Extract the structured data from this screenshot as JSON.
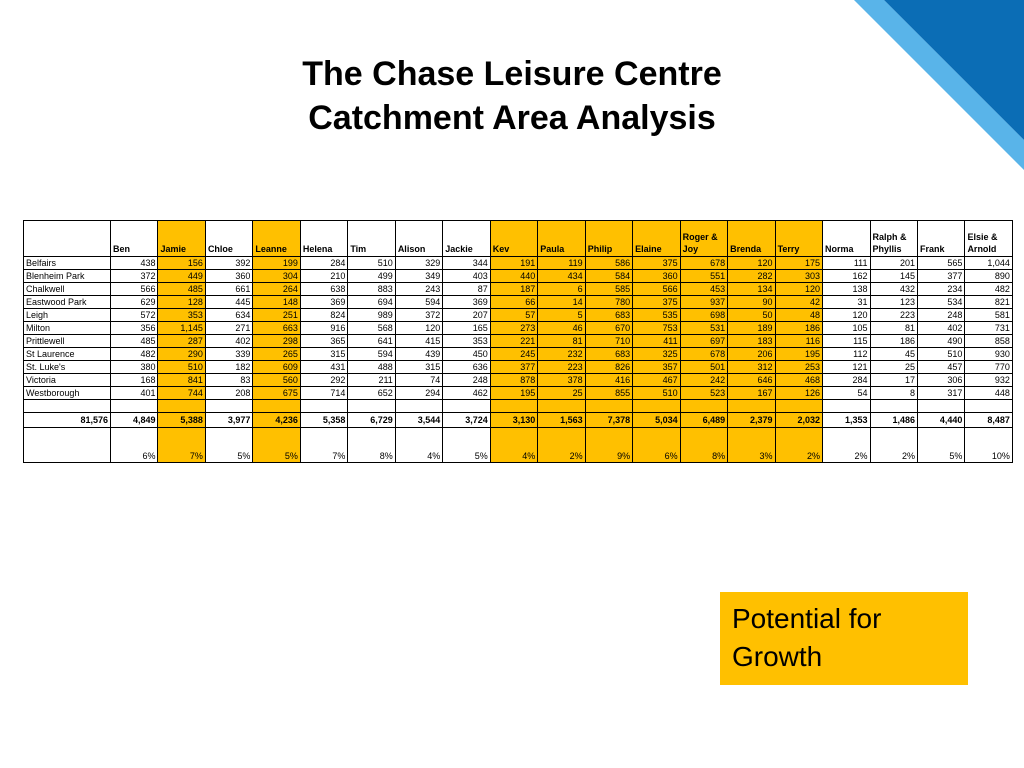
{
  "colors": {
    "highlight": "#ffc000",
    "corner_dark": "#0b6db5",
    "corner_light": "#59b4e9"
  },
  "title": {
    "line1": "The Chase Leisure Centre",
    "line2": "Catchment Area Analysis"
  },
  "table": {
    "columns": [
      {
        "line1": "Ben",
        "line2": "",
        "highlight": false
      },
      {
        "line1": "Jamie",
        "line2": "",
        "highlight": true
      },
      {
        "line1": "Chloe",
        "line2": "",
        "highlight": false
      },
      {
        "line1": "Leanne",
        "line2": "",
        "highlight": true
      },
      {
        "line1": "Helena",
        "line2": "",
        "highlight": false
      },
      {
        "line1": "Tim",
        "line2": "",
        "highlight": false
      },
      {
        "line1": "Alison",
        "line2": "",
        "highlight": false
      },
      {
        "line1": "Jackie",
        "line2": "",
        "highlight": false
      },
      {
        "line1": "Kev",
        "line2": "",
        "highlight": true
      },
      {
        "line1": "Paula",
        "line2": "",
        "highlight": true
      },
      {
        "line1": "Philip",
        "line2": "",
        "highlight": true
      },
      {
        "line1": "Elaine",
        "line2": "",
        "highlight": true
      },
      {
        "line1": "Roger &",
        "line2": "Joy",
        "highlight": true
      },
      {
        "line1": "Brenda",
        "line2": "",
        "highlight": true
      },
      {
        "line1": "Terry",
        "line2": "",
        "highlight": true
      },
      {
        "line1": "Norma",
        "line2": "",
        "highlight": false
      },
      {
        "line1": "Ralph &",
        "line2": "Phyllis",
        "highlight": false
      },
      {
        "line1": "Frank",
        "line2": "",
        "highlight": false
      },
      {
        "line1": "Elsie &",
        "line2": "Arnold",
        "highlight": false
      }
    ],
    "rows": [
      {
        "area": "Belfairs",
        "values": [
          "438",
          "156",
          "392",
          "199",
          "284",
          "510",
          "329",
          "344",
          "191",
          "119",
          "586",
          "375",
          "678",
          "120",
          "175",
          "111",
          "201",
          "565",
          "1,044"
        ]
      },
      {
        "area": "Blenheim Park",
        "values": [
          "372",
          "449",
          "360",
          "304",
          "210",
          "499",
          "349",
          "403",
          "440",
          "434",
          "584",
          "360",
          "551",
          "282",
          "303",
          "162",
          "145",
          "377",
          "890"
        ]
      },
      {
        "area": "Chalkwell",
        "values": [
          "566",
          "485",
          "661",
          "264",
          "638",
          "883",
          "243",
          "87",
          "187",
          "6",
          "585",
          "566",
          "453",
          "134",
          "120",
          "138",
          "432",
          "234",
          "482"
        ]
      },
      {
        "area": "Eastwood Park",
        "values": [
          "629",
          "128",
          "445",
          "148",
          "369",
          "694",
          "594",
          "369",
          "66",
          "14",
          "780",
          "375",
          "937",
          "90",
          "42",
          "31",
          "123",
          "534",
          "821"
        ]
      },
      {
        "area": "Leigh",
        "values": [
          "572",
          "353",
          "634",
          "251",
          "824",
          "989",
          "372",
          "207",
          "57",
          "5",
          "683",
          "535",
          "698",
          "50",
          "48",
          "120",
          "223",
          "248",
          "581"
        ]
      },
      {
        "area": "Milton",
        "values": [
          "356",
          "1,145",
          "271",
          "663",
          "916",
          "568",
          "120",
          "165",
          "273",
          "46",
          "670",
          "753",
          "531",
          "189",
          "186",
          "105",
          "81",
          "402",
          "731"
        ]
      },
      {
        "area": "Prittlewell",
        "values": [
          "485",
          "287",
          "402",
          "298",
          "365",
          "641",
          "415",
          "353",
          "221",
          "81",
          "710",
          "411",
          "697",
          "183",
          "116",
          "115",
          "186",
          "490",
          "858"
        ]
      },
      {
        "area": "St Laurence",
        "values": [
          "482",
          "290",
          "339",
          "265",
          "315",
          "594",
          "439",
          "450",
          "245",
          "232",
          "683",
          "325",
          "678",
          "206",
          "195",
          "112",
          "45",
          "510",
          "930"
        ]
      },
      {
        "area": "St. Luke's",
        "values": [
          "380",
          "510",
          "182",
          "609",
          "431",
          "488",
          "315",
          "636",
          "377",
          "223",
          "826",
          "357",
          "501",
          "312",
          "253",
          "121",
          "25",
          "457",
          "770"
        ]
      },
      {
        "area": "Victoria",
        "values": [
          "168",
          "841",
          "83",
          "560",
          "292",
          "211",
          "74",
          "248",
          "878",
          "378",
          "416",
          "467",
          "242",
          "646",
          "468",
          "284",
          "17",
          "306",
          "932"
        ]
      },
      {
        "area": "Westborough",
        "values": [
          "401",
          "744",
          "208",
          "675",
          "714",
          "652",
          "294",
          "462",
          "195",
          "25",
          "855",
          "510",
          "523",
          "167",
          "126",
          "54",
          "8",
          "317",
          "448"
        ]
      }
    ],
    "grand_total": "81,576",
    "totals": [
      "4,849",
      "5,388",
      "3,977",
      "4,236",
      "5,358",
      "6,729",
      "3,544",
      "3,724",
      "3,130",
      "1,563",
      "7,378",
      "5,034",
      "6,489",
      "2,379",
      "2,032",
      "1,353",
      "1,486",
      "4,440",
      "8,487"
    ],
    "percentages": [
      "6%",
      "7%",
      "5%",
      "5%",
      "7%",
      "8%",
      "4%",
      "5%",
      "4%",
      "2%",
      "9%",
      "6%",
      "8%",
      "3%",
      "2%",
      "2%",
      "2%",
      "5%",
      "10%"
    ]
  },
  "callout": {
    "line1": "Potential for",
    "line2": "Growth"
  }
}
